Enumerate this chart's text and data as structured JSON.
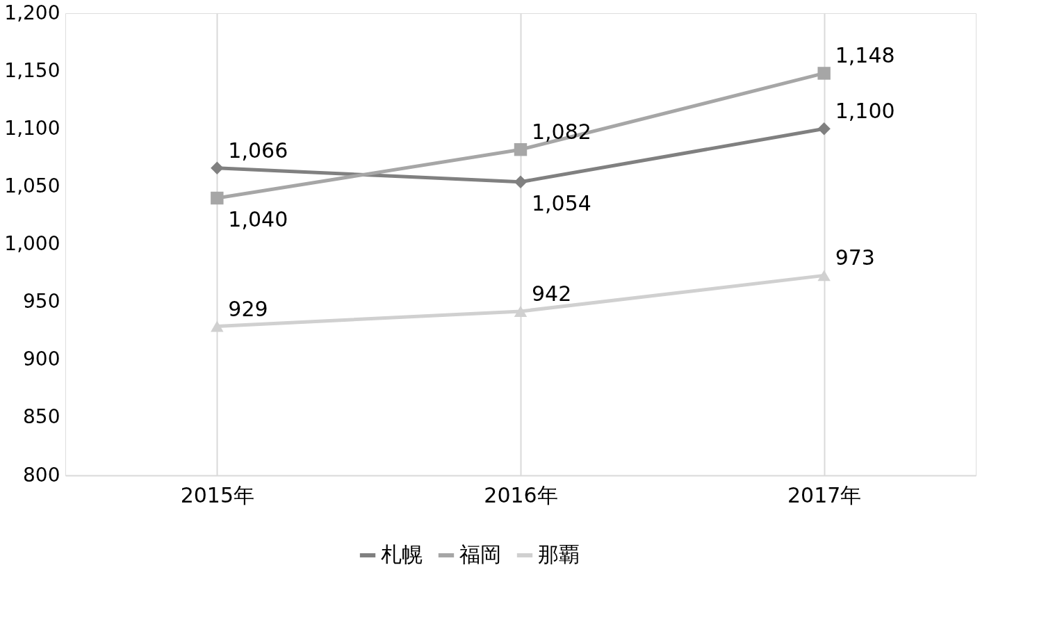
{
  "chart_data": {
    "type": "line",
    "categories": [
      "2015年",
      "2016年",
      "2017年"
    ],
    "series": [
      {
        "name": "札幌",
        "color": "#808080",
        "marker": "diamond",
        "values": [
          1066,
          1054,
          1100
        ],
        "value_labels": [
          "1,066",
          "1,054",
          "1,100"
        ]
      },
      {
        "name": "福岡",
        "color": "#a6a6a6",
        "marker": "square",
        "values": [
          1040,
          1082,
          1148
        ],
        "value_labels": [
          "1,040",
          "1,082",
          "1,148"
        ]
      },
      {
        "name": "那覇",
        "color": "#d0d0d0",
        "marker": "triangle",
        "values": [
          929,
          942,
          973
        ],
        "value_labels": [
          "929",
          "942",
          "973"
        ]
      }
    ],
    "ylim": [
      800,
      1200
    ],
    "yticks": [
      {
        "value": 800,
        "label": "800"
      },
      {
        "value": 850,
        "label": "850"
      },
      {
        "value": 900,
        "label": "900"
      },
      {
        "value": 950,
        "label": "950"
      },
      {
        "value": 1000,
        "label": "1,000"
      },
      {
        "value": 1050,
        "label": "1,050"
      },
      {
        "value": 1100,
        "label": "1,100"
      },
      {
        "value": 1150,
        "label": "1,150"
      },
      {
        "value": 1200,
        "label": "1,200"
      }
    ],
    "grid": "x",
    "legend": "bottom",
    "line_style": "solid"
  }
}
